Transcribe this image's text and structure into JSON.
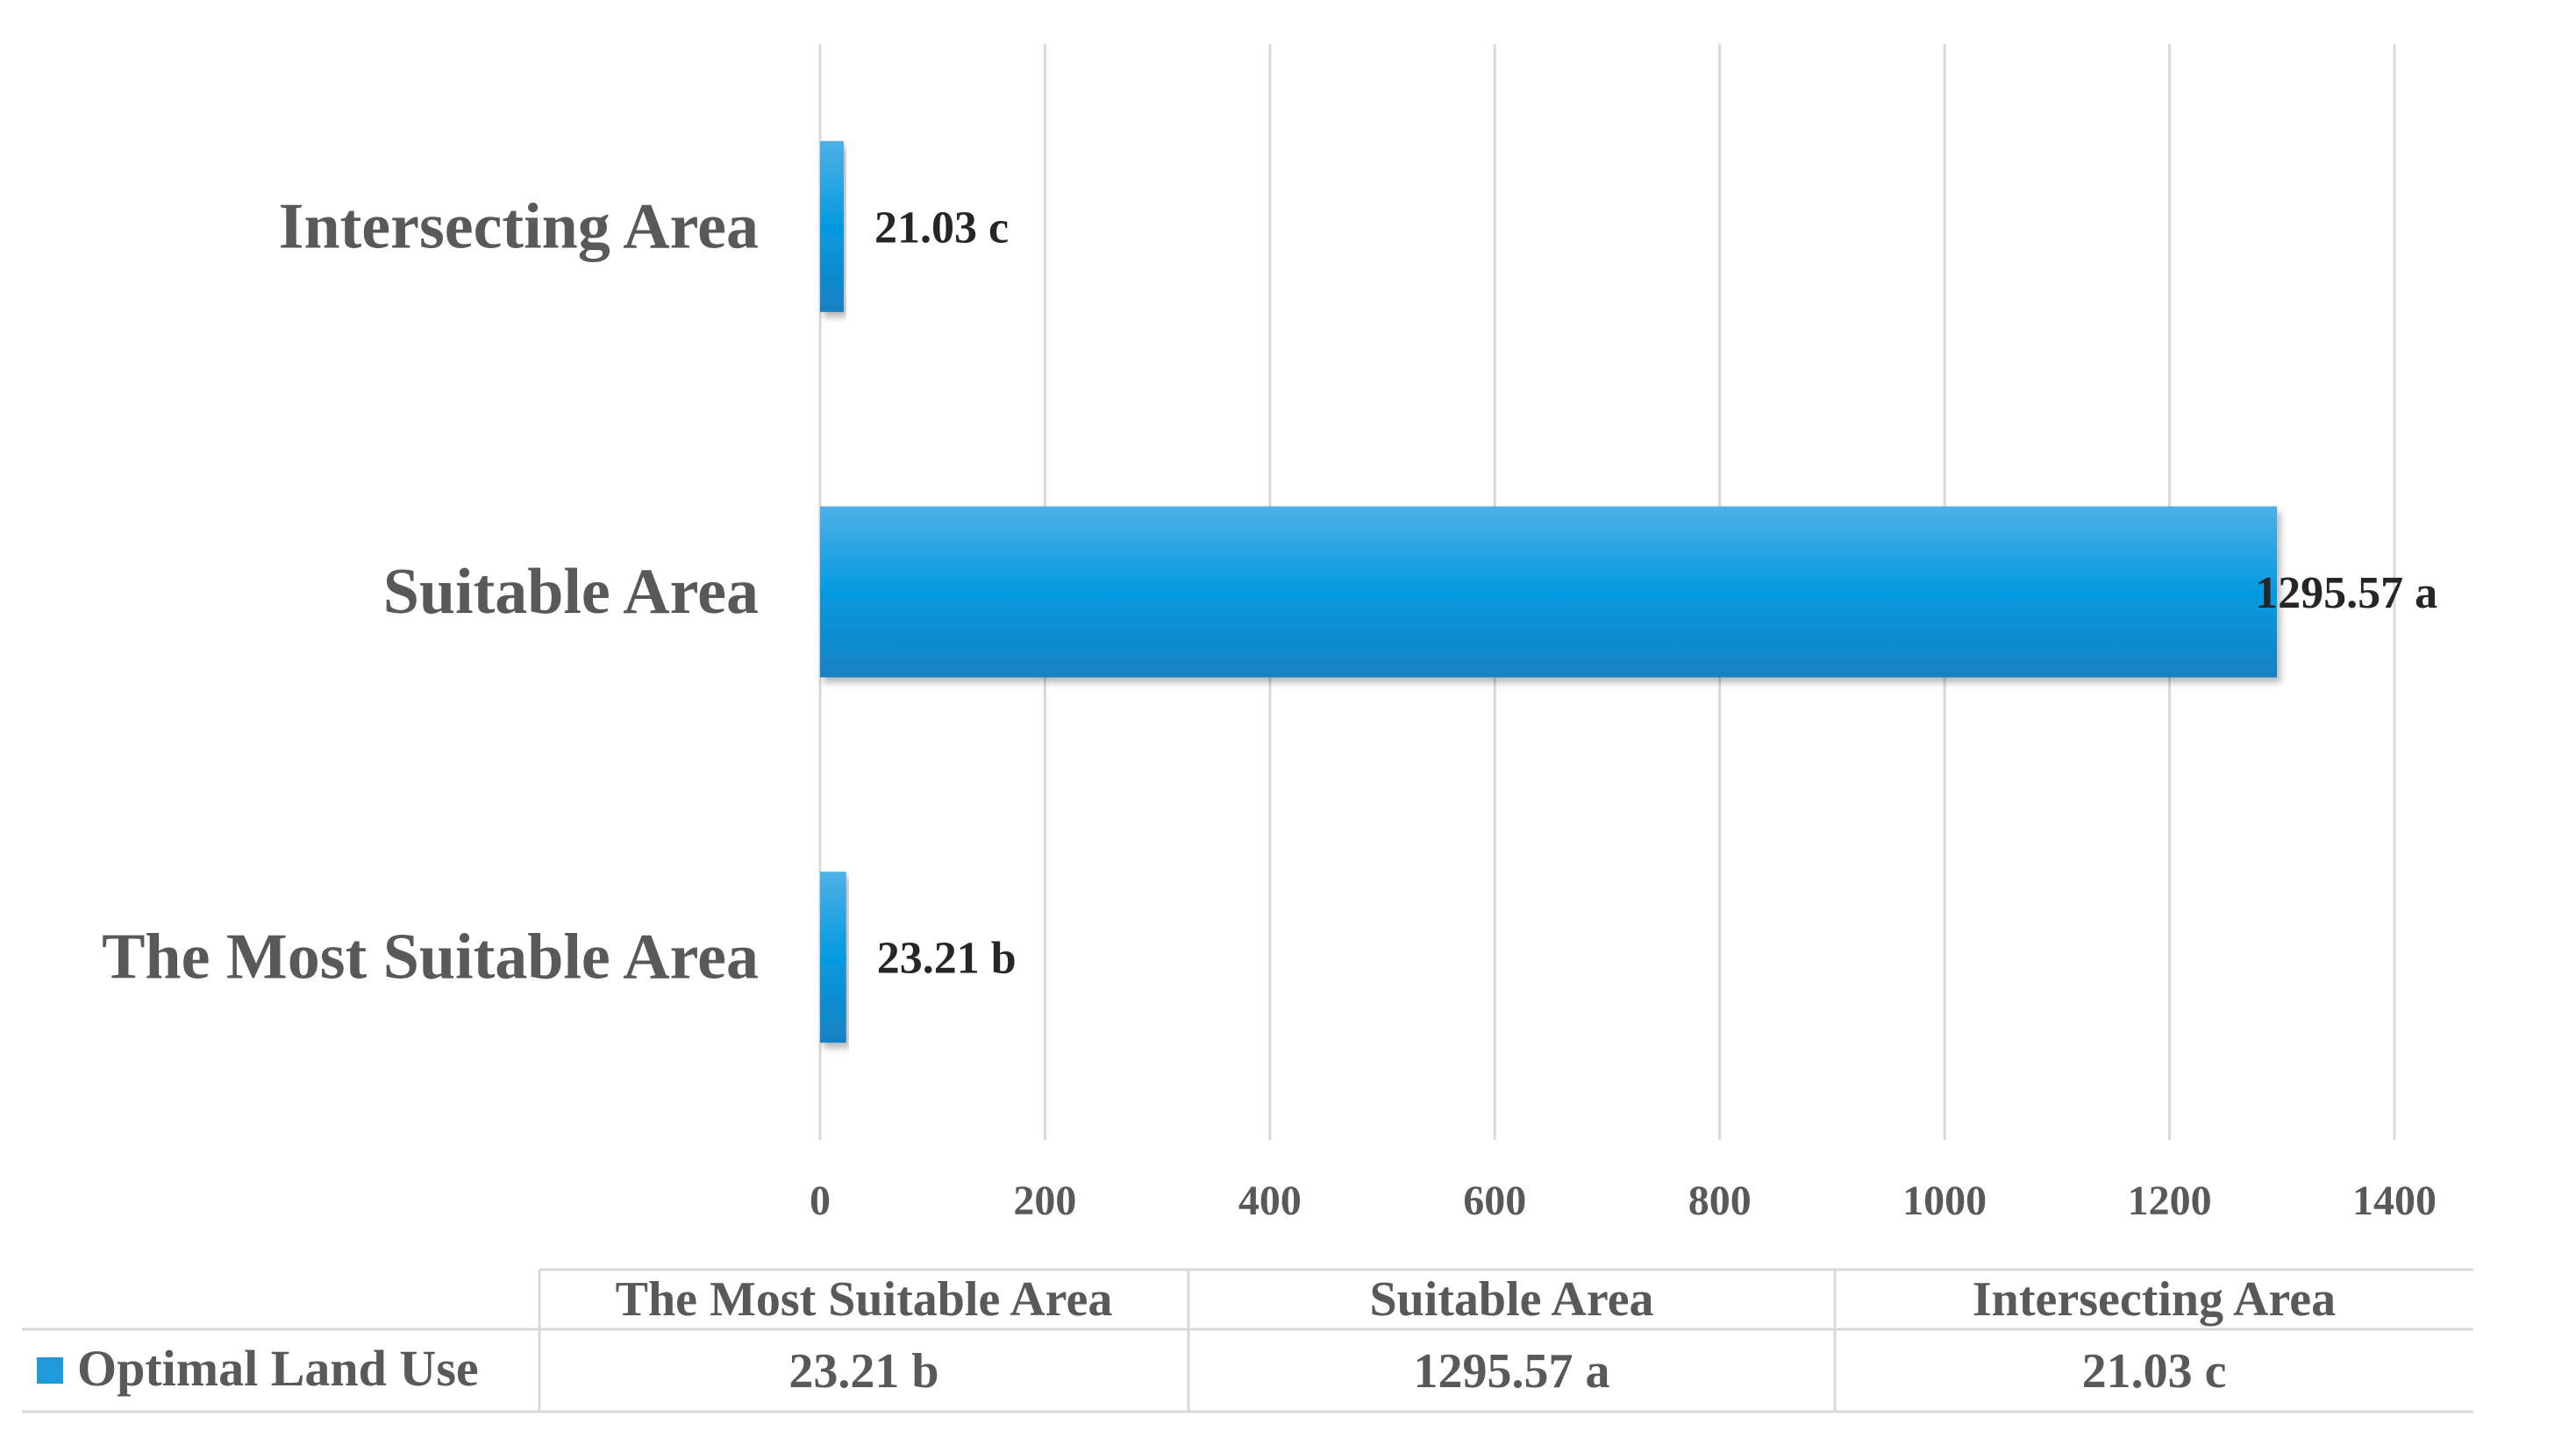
{
  "chart_data": {
    "type": "bar",
    "orientation": "horizontal",
    "categories": [
      "The Most Suitable Area",
      "Suitable Area",
      "Intersecting Area"
    ],
    "series": [
      {
        "name": "Optimal Land Use",
        "values": [
          23.21,
          1295.57,
          21.03
        ],
        "labels": [
          "23.21 b",
          "1295.57 a",
          "21.03 c"
        ],
        "color": "#1f9ad8"
      }
    ],
    "xlim": [
      0,
      1400
    ],
    "xticks": [
      "0",
      "200",
      "400",
      "600",
      "800",
      "1000",
      "1200",
      "1400"
    ],
    "grid": true,
    "legend": "data-table-below"
  },
  "colors": {
    "bar": "#1f9ad8",
    "bar_light": "#4fb0e6",
    "bar_dark": "#1681c2",
    "grid": "#d9d9d9",
    "text": "#595959",
    "data_label": "#262626"
  }
}
